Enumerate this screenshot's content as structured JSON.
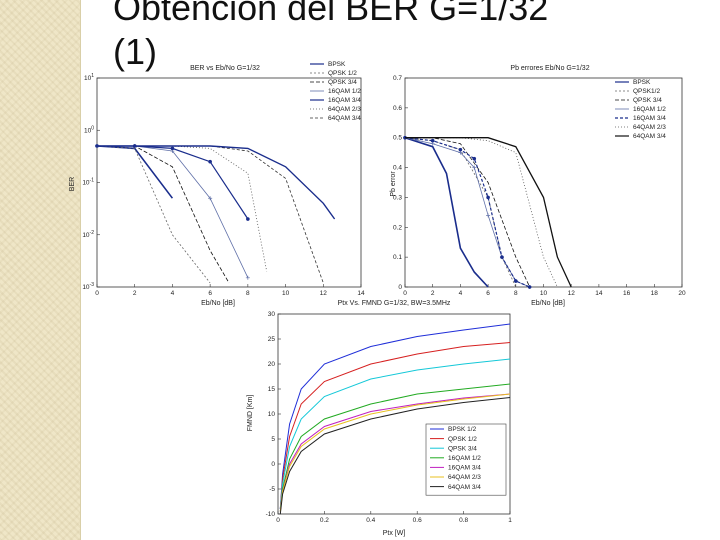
{
  "slide": {
    "title_line1": "Obtención del BER G=1/32",
    "title_line2": "(1)"
  },
  "colors": {
    "background": "#ffffff",
    "sidebar": "#efe6c7",
    "title": "#111111"
  },
  "chart_data": [
    {
      "type": "line",
      "title": "BER vs Eb/No G=1/32",
      "xlabel": "Eb/No [dB]",
      "ylabel": "BER",
      "xlim": [
        0,
        14
      ],
      "ylim": [
        0.001,
        10
      ],
      "yscale": "log",
      "xticks": [
        "0",
        "2",
        "4",
        "6",
        "8",
        "10",
        "12",
        "14"
      ],
      "yticks": [
        "10^-3",
        "10^-2",
        "10^-1",
        "10^0",
        "10^1"
      ],
      "legend_position": "top-right",
      "series": [
        {
          "name": "BPSK",
          "color": "#1a2d8c",
          "dash": "",
          "marker": "",
          "width": 1.6,
          "x": [
            0,
            2,
            4
          ],
          "y": [
            0.5,
            0.45,
            0.05
          ]
        },
        {
          "name": "QPSK 1/2",
          "color": "#666666",
          "dash": "2,2",
          "marker": "",
          "width": 0.8,
          "x": [
            0,
            2,
            4,
            6
          ],
          "y": [
            0.5,
            0.45,
            0.01,
            0.0012
          ]
        },
        {
          "name": "QPSK 3/4",
          "color": "#111111",
          "dash": "4,2",
          "marker": "",
          "width": 0.8,
          "x": [
            0,
            2,
            4,
            6,
            7
          ],
          "y": [
            0.5,
            0.5,
            0.2,
            0.005,
            0.0012
          ]
        },
        {
          "name": "16QAM 1/2",
          "color": "#6070a8",
          "dash": "",
          "marker": "plus",
          "width": 0.8,
          "x": [
            0,
            2,
            4,
            6,
            8
          ],
          "y": [
            0.5,
            0.5,
            0.4,
            0.05,
            0.0015
          ]
        },
        {
          "name": "16QAM 3/4",
          "color": "#1a2d8c",
          "dash": "",
          "marker": "dot",
          "width": 1.2,
          "x": [
            0,
            2,
            4,
            6,
            8
          ],
          "y": [
            0.5,
            0.5,
            0.45,
            0.25,
            0.02
          ]
        },
        {
          "name": "64QAM 2/3",
          "color": "#555555",
          "dash": "1,2",
          "marker": "",
          "width": 0.8,
          "x": [
            0,
            2,
            4,
            6,
            8,
            9
          ],
          "y": [
            0.5,
            0.5,
            0.5,
            0.45,
            0.15,
            0.002
          ]
        },
        {
          "name": "64QAM 3/4",
          "color": "#333333",
          "dash": "3,2",
          "marker": "",
          "width": 0.8,
          "x": [
            0,
            2,
            4,
            6,
            8,
            10,
            12
          ],
          "y": [
            0.5,
            0.5,
            0.5,
            0.5,
            0.4,
            0.12,
            0.0012
          ]
        },
        {
          "name": "",
          "color": "#1a2d8c",
          "dash": "",
          "marker": "",
          "width": 1.4,
          "x": [
            0,
            2,
            4,
            6,
            8,
            10,
            12,
            12.6
          ],
          "y": [
            0.5,
            0.5,
            0.5,
            0.5,
            0.45,
            0.2,
            0.04,
            0.02
          ]
        }
      ]
    },
    {
      "type": "line",
      "title": "Pb errores Eb/No G=1/32",
      "xlabel": "Eb/No [dB]",
      "ylabel": "Pb error",
      "xlim": [
        0,
        20
      ],
      "ylim": [
        0,
        0.7
      ],
      "xticks": [
        "0",
        "2",
        "4",
        "6",
        "8",
        "10",
        "12",
        "14",
        "16",
        "18",
        "20"
      ],
      "yticks": [
        "0",
        "0.1",
        "0.2",
        "0.3",
        "0.4",
        "0.5",
        "0.6",
        "0.7"
      ],
      "legend_position": "top-right",
      "series": [
        {
          "name": "BPSK",
          "color": "#1a2d8c",
          "dash": "",
          "marker": "",
          "width": 1.6,
          "x": [
            0,
            2,
            3,
            4,
            5,
            6
          ],
          "y": [
            0.5,
            0.47,
            0.38,
            0.13,
            0.05,
            0
          ]
        },
        {
          "name": "QPSK1/2",
          "color": "#666666",
          "dash": "2,2",
          "marker": "",
          "width": 0.8,
          "x": [
            0,
            2,
            4,
            6,
            7,
            8
          ],
          "y": [
            0.5,
            0.49,
            0.46,
            0.3,
            0.1,
            0
          ]
        },
        {
          "name": "QPSK 3/4",
          "color": "#111111",
          "dash": "4,2",
          "marker": "",
          "width": 0.8,
          "x": [
            0,
            2,
            4,
            6,
            8,
            9
          ],
          "y": [
            0.5,
            0.5,
            0.48,
            0.35,
            0.1,
            0
          ]
        },
        {
          "name": "16QAM 1/2",
          "color": "#6070a8",
          "dash": "",
          "marker": "plus",
          "width": 0.8,
          "x": [
            0,
            2,
            4,
            5,
            6,
            7,
            8,
            9
          ],
          "y": [
            0.5,
            0.48,
            0.45,
            0.4,
            0.24,
            0.1,
            0.02,
            0
          ]
        },
        {
          "name": "16QAM 3/4",
          "color": "#1a2d8c",
          "dash": "3,2",
          "marker": "dot",
          "width": 1.2,
          "x": [
            0,
            2,
            4,
            5,
            6,
            7,
            8,
            9
          ],
          "y": [
            0.5,
            0.49,
            0.46,
            0.43,
            0.3,
            0.1,
            0.02,
            0
          ]
        },
        {
          "name": "64QAM 2/3",
          "color": "#555555",
          "dash": "1,2",
          "marker": "",
          "width": 0.8,
          "x": [
            0,
            2,
            4,
            6,
            8,
            10,
            11
          ],
          "y": [
            0.5,
            0.5,
            0.5,
            0.49,
            0.45,
            0.1,
            0
          ]
        },
        {
          "name": "64QAM 3/4",
          "color": "#111111",
          "dash": "",
          "marker": "",
          "width": 1.3,
          "x": [
            0,
            2,
            4,
            6,
            8,
            10,
            11,
            12
          ],
          "y": [
            0.5,
            0.5,
            0.5,
            0.5,
            0.47,
            0.3,
            0.1,
            0
          ]
        }
      ]
    },
    {
      "type": "line",
      "title": "Ptx Vs. FMND G=1/32, BW=3.5MHz",
      "xlabel": "Ptx [W]",
      "ylabel": "FMND [Km]",
      "xlim": [
        0,
        1
      ],
      "ylim": [
        -10,
        30
      ],
      "xticks": [
        "0",
        "0.2",
        "0.4",
        "0.6",
        "0.8",
        "1"
      ],
      "yticks": [
        "-10",
        "-5",
        "0",
        "5",
        "10",
        "15",
        "20",
        "25",
        "30"
      ],
      "legend_position": "bottom-right",
      "series": [
        {
          "name": "BPSK 1/2",
          "color": "#1f2ed8",
          "dash": "",
          "marker": "",
          "width": 1,
          "x": [
            0.01,
            0.02,
            0.05,
            0.1,
            0.2,
            0.4,
            0.6,
            0.8,
            1.0
          ],
          "y": [
            -9,
            -2,
            8,
            15,
            20,
            23.5,
            25.5,
            26.8,
            28
          ]
        },
        {
          "name": "QPSK 1/2",
          "color": "#d62020",
          "dash": "",
          "marker": "",
          "width": 1,
          "x": [
            0.01,
            0.02,
            0.05,
            0.1,
            0.2,
            0.4,
            0.6,
            0.8,
            1.0
          ],
          "y": [
            -9,
            -3,
            5.5,
            12,
            16.5,
            20,
            22,
            23.5,
            24.3
          ]
        },
        {
          "name": "QPSK 3/4",
          "color": "#14c8d8",
          "dash": "",
          "marker": "",
          "width": 1,
          "x": [
            0.01,
            0.02,
            0.05,
            0.1,
            0.2,
            0.4,
            0.6,
            0.8,
            1.0
          ],
          "y": [
            -9,
            -4,
            3.5,
            9,
            13.5,
            17,
            18.8,
            20,
            21
          ]
        },
        {
          "name": "16QAM 1/2",
          "color": "#22aa22",
          "dash": "",
          "marker": "",
          "width": 1,
          "x": [
            0.01,
            0.02,
            0.05,
            0.1,
            0.2,
            0.4,
            0.6,
            0.8,
            1.0
          ],
          "y": [
            -9.5,
            -5,
            1,
            5.5,
            9,
            12,
            14,
            15,
            16
          ]
        },
        {
          "name": "16QAM 3/4",
          "color": "#c020c0",
          "dash": "",
          "marker": "",
          "width": 1,
          "x": [
            0.01,
            0.02,
            0.05,
            0.1,
            0.2,
            0.4,
            0.6,
            0.8,
            1.0
          ],
          "y": [
            -9.5,
            -5.5,
            0,
            4,
            7.5,
            10.5,
            12,
            13.2,
            14
          ]
        },
        {
          "name": "64QAM 2/3",
          "color": "#e8c020",
          "dash": "",
          "marker": "",
          "width": 1,
          "x": [
            0.01,
            0.02,
            0.05,
            0.1,
            0.2,
            0.4,
            0.6,
            0.8,
            1.0
          ],
          "y": [
            -9.5,
            -5.5,
            -0.5,
            3.5,
            7,
            10,
            11.8,
            13,
            14
          ]
        },
        {
          "name": "64QAM 3/4",
          "color": "#222222",
          "dash": "",
          "marker": "",
          "width": 1,
          "x": [
            0.01,
            0.02,
            0.05,
            0.1,
            0.2,
            0.4,
            0.6,
            0.8,
            1.0
          ],
          "y": [
            -10,
            -6,
            -1.5,
            2.5,
            6,
            9,
            11,
            12.3,
            13.3
          ]
        }
      ]
    }
  ]
}
